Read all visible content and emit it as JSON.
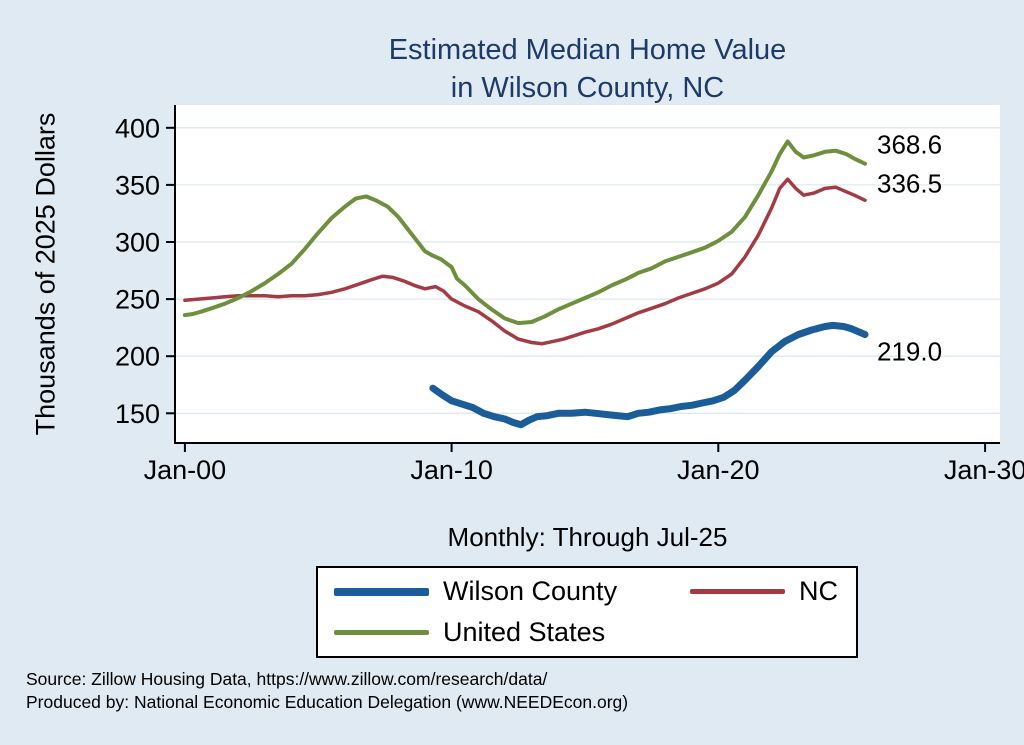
{
  "title": {
    "line1": "Estimated Median Home Value",
    "line2": "in Wilson County, NC"
  },
  "y_axis_label": "Thousands of 2025 Dollars",
  "subtitle": "Monthly: Through Jul-25",
  "notes": {
    "line1": "Source: Zillow Housing Data, https://www.zillow.com/research/data/",
    "line2": "Produced by: National Economic Education Delegation (www.NEEDEcon.org)"
  },
  "colors": {
    "background": "#dfeaf3",
    "plot_bg": "#ffffff",
    "grid": "#dde8f0",
    "axis": "#000000",
    "title_color": "#1e3a68"
  },
  "chart_data": {
    "type": "line",
    "title": "Estimated Median Home Value in Wilson County, NC",
    "subtitle": "Monthly: Through Jul-25",
    "xlabel": "",
    "ylabel": "Thousands of 2025 Dollars",
    "xlim": [
      1999.63,
      2030.56
    ],
    "ylim": [
      124,
      420
    ],
    "grid": "horizontal",
    "legend_position": "bottom",
    "x_ticks": [
      {
        "value": 2000,
        "label": "Jan-00"
      },
      {
        "value": 2010,
        "label": "Jan-10"
      },
      {
        "value": 2020,
        "label": "Jan-20"
      },
      {
        "value": 2030,
        "label": "Jan-30"
      }
    ],
    "y_ticks": [
      150,
      200,
      250,
      300,
      350,
      400
    ],
    "legend_order": [
      "Wilson County",
      "NC",
      "United States"
    ],
    "series": [
      {
        "name": "Wilson County",
        "color": "#1b5d99",
        "width": 7,
        "end_label": {
          "text": "219.0",
          "dx": 12,
          "dy": 26
        },
        "points": [
          [
            2009.3,
            172
          ],
          [
            2009.6,
            167
          ],
          [
            2010.0,
            161
          ],
          [
            2010.4,
            158
          ],
          [
            2010.8,
            155
          ],
          [
            2011.2,
            150
          ],
          [
            2011.6,
            147
          ],
          [
            2012.0,
            145
          ],
          [
            2012.3,
            142
          ],
          [
            2012.6,
            140
          ],
          [
            2012.9,
            144
          ],
          [
            2013.2,
            147
          ],
          [
            2013.6,
            148
          ],
          [
            2014.0,
            150
          ],
          [
            2014.5,
            150
          ],
          [
            2015.0,
            151
          ],
          [
            2015.4,
            150
          ],
          [
            2015.8,
            149
          ],
          [
            2016.2,
            148
          ],
          [
            2016.6,
            147
          ],
          [
            2017.0,
            150
          ],
          [
            2017.4,
            151
          ],
          [
            2017.8,
            153
          ],
          [
            2018.2,
            154
          ],
          [
            2018.6,
            156
          ],
          [
            2019.0,
            157
          ],
          [
            2019.4,
            159
          ],
          [
            2019.8,
            161
          ],
          [
            2020.2,
            164
          ],
          [
            2020.6,
            170
          ],
          [
            2021.0,
            179
          ],
          [
            2021.5,
            191
          ],
          [
            2022.0,
            204
          ],
          [
            2022.5,
            213
          ],
          [
            2023.0,
            219
          ],
          [
            2023.5,
            223
          ],
          [
            2024.0,
            226
          ],
          [
            2024.3,
            227
          ],
          [
            2024.7,
            226
          ],
          [
            2025.0,
            224
          ],
          [
            2025.5,
            219.0
          ]
        ]
      },
      {
        "name": "NC",
        "color": "#a33b44",
        "width": 3.5,
        "end_label": {
          "text": "336.5",
          "dx": 12,
          "dy": -8
        },
        "points": [
          [
            2000.0,
            249
          ],
          [
            2000.5,
            250
          ],
          [
            2001.0,
            251
          ],
          [
            2001.5,
            252
          ],
          [
            2002.0,
            253
          ],
          [
            2002.5,
            253
          ],
          [
            2003.0,
            253
          ],
          [
            2003.5,
            252
          ],
          [
            2004.0,
            253
          ],
          [
            2004.5,
            253
          ],
          [
            2005.0,
            254
          ],
          [
            2005.5,
            256
          ],
          [
            2006.0,
            259
          ],
          [
            2006.5,
            263
          ],
          [
            2007.0,
            267
          ],
          [
            2007.4,
            270
          ],
          [
            2007.8,
            269
          ],
          [
            2008.2,
            266
          ],
          [
            2008.6,
            262
          ],
          [
            2009.0,
            259
          ],
          [
            2009.4,
            261
          ],
          [
            2009.7,
            257
          ],
          [
            2010.0,
            250
          ],
          [
            2010.5,
            244
          ],
          [
            2011.0,
            239
          ],
          [
            2011.5,
            231
          ],
          [
            2012.0,
            222
          ],
          [
            2012.5,
            215
          ],
          [
            2013.0,
            212
          ],
          [
            2013.4,
            211
          ],
          [
            2013.8,
            213
          ],
          [
            2014.2,
            215
          ],
          [
            2014.6,
            218
          ],
          [
            2015.0,
            221
          ],
          [
            2015.5,
            224
          ],
          [
            2016.0,
            228
          ],
          [
            2016.5,
            233
          ],
          [
            2017.0,
            238
          ],
          [
            2017.5,
            242
          ],
          [
            2018.0,
            246
          ],
          [
            2018.5,
            251
          ],
          [
            2019.0,
            255
          ],
          [
            2019.5,
            259
          ],
          [
            2020.0,
            264
          ],
          [
            2020.5,
            272
          ],
          [
            2021.0,
            287
          ],
          [
            2021.5,
            306
          ],
          [
            2022.0,
            330
          ],
          [
            2022.3,
            347
          ],
          [
            2022.6,
            355
          ],
          [
            2022.9,
            347
          ],
          [
            2023.2,
            341
          ],
          [
            2023.6,
            343
          ],
          [
            2024.0,
            347
          ],
          [
            2024.4,
            348
          ],
          [
            2024.8,
            344
          ],
          [
            2025.1,
            341
          ],
          [
            2025.5,
            336.5
          ]
        ]
      },
      {
        "name": "United States",
        "color": "#6e8f3c",
        "width": 4,
        "end_label": {
          "text": "368.6",
          "dx": 12,
          "dy": -10
        },
        "points": [
          [
            2000.0,
            236
          ],
          [
            2000.3,
            237
          ],
          [
            2000.6,
            239
          ],
          [
            2001.0,
            242
          ],
          [
            2001.5,
            246
          ],
          [
            2002.0,
            251
          ],
          [
            2002.5,
            257
          ],
          [
            2003.0,
            264
          ],
          [
            2003.5,
            272
          ],
          [
            2004.0,
            281
          ],
          [
            2004.5,
            294
          ],
          [
            2005.0,
            308
          ],
          [
            2005.5,
            321
          ],
          [
            2006.0,
            331
          ],
          [
            2006.4,
            338
          ],
          [
            2006.8,
            340
          ],
          [
            2007.2,
            336
          ],
          [
            2007.6,
            331
          ],
          [
            2008.0,
            322
          ],
          [
            2008.4,
            310
          ],
          [
            2008.8,
            298
          ],
          [
            2009.0,
            292
          ],
          [
            2009.3,
            288
          ],
          [
            2009.6,
            285
          ],
          [
            2010.0,
            278
          ],
          [
            2010.2,
            268
          ],
          [
            2010.5,
            262
          ],
          [
            2011.0,
            250
          ],
          [
            2011.5,
            241
          ],
          [
            2012.0,
            233
          ],
          [
            2012.5,
            229
          ],
          [
            2013.0,
            230
          ],
          [
            2013.5,
            235
          ],
          [
            2014.0,
            241
          ],
          [
            2014.5,
            246
          ],
          [
            2015.0,
            251
          ],
          [
            2015.5,
            256
          ],
          [
            2016.0,
            262
          ],
          [
            2016.5,
            267
          ],
          [
            2017.0,
            273
          ],
          [
            2017.5,
            277
          ],
          [
            2018.0,
            283
          ],
          [
            2018.5,
            287
          ],
          [
            2019.0,
            291
          ],
          [
            2019.5,
            295
          ],
          [
            2020.0,
            301
          ],
          [
            2020.5,
            309
          ],
          [
            2021.0,
            322
          ],
          [
            2021.5,
            341
          ],
          [
            2022.0,
            362
          ],
          [
            2022.3,
            377
          ],
          [
            2022.6,
            388
          ],
          [
            2022.9,
            379
          ],
          [
            2023.2,
            374
          ],
          [
            2023.6,
            376
          ],
          [
            2024.0,
            379
          ],
          [
            2024.4,
            380
          ],
          [
            2024.8,
            377
          ],
          [
            2025.1,
            373
          ],
          [
            2025.5,
            368.6
          ]
        ]
      }
    ]
  }
}
